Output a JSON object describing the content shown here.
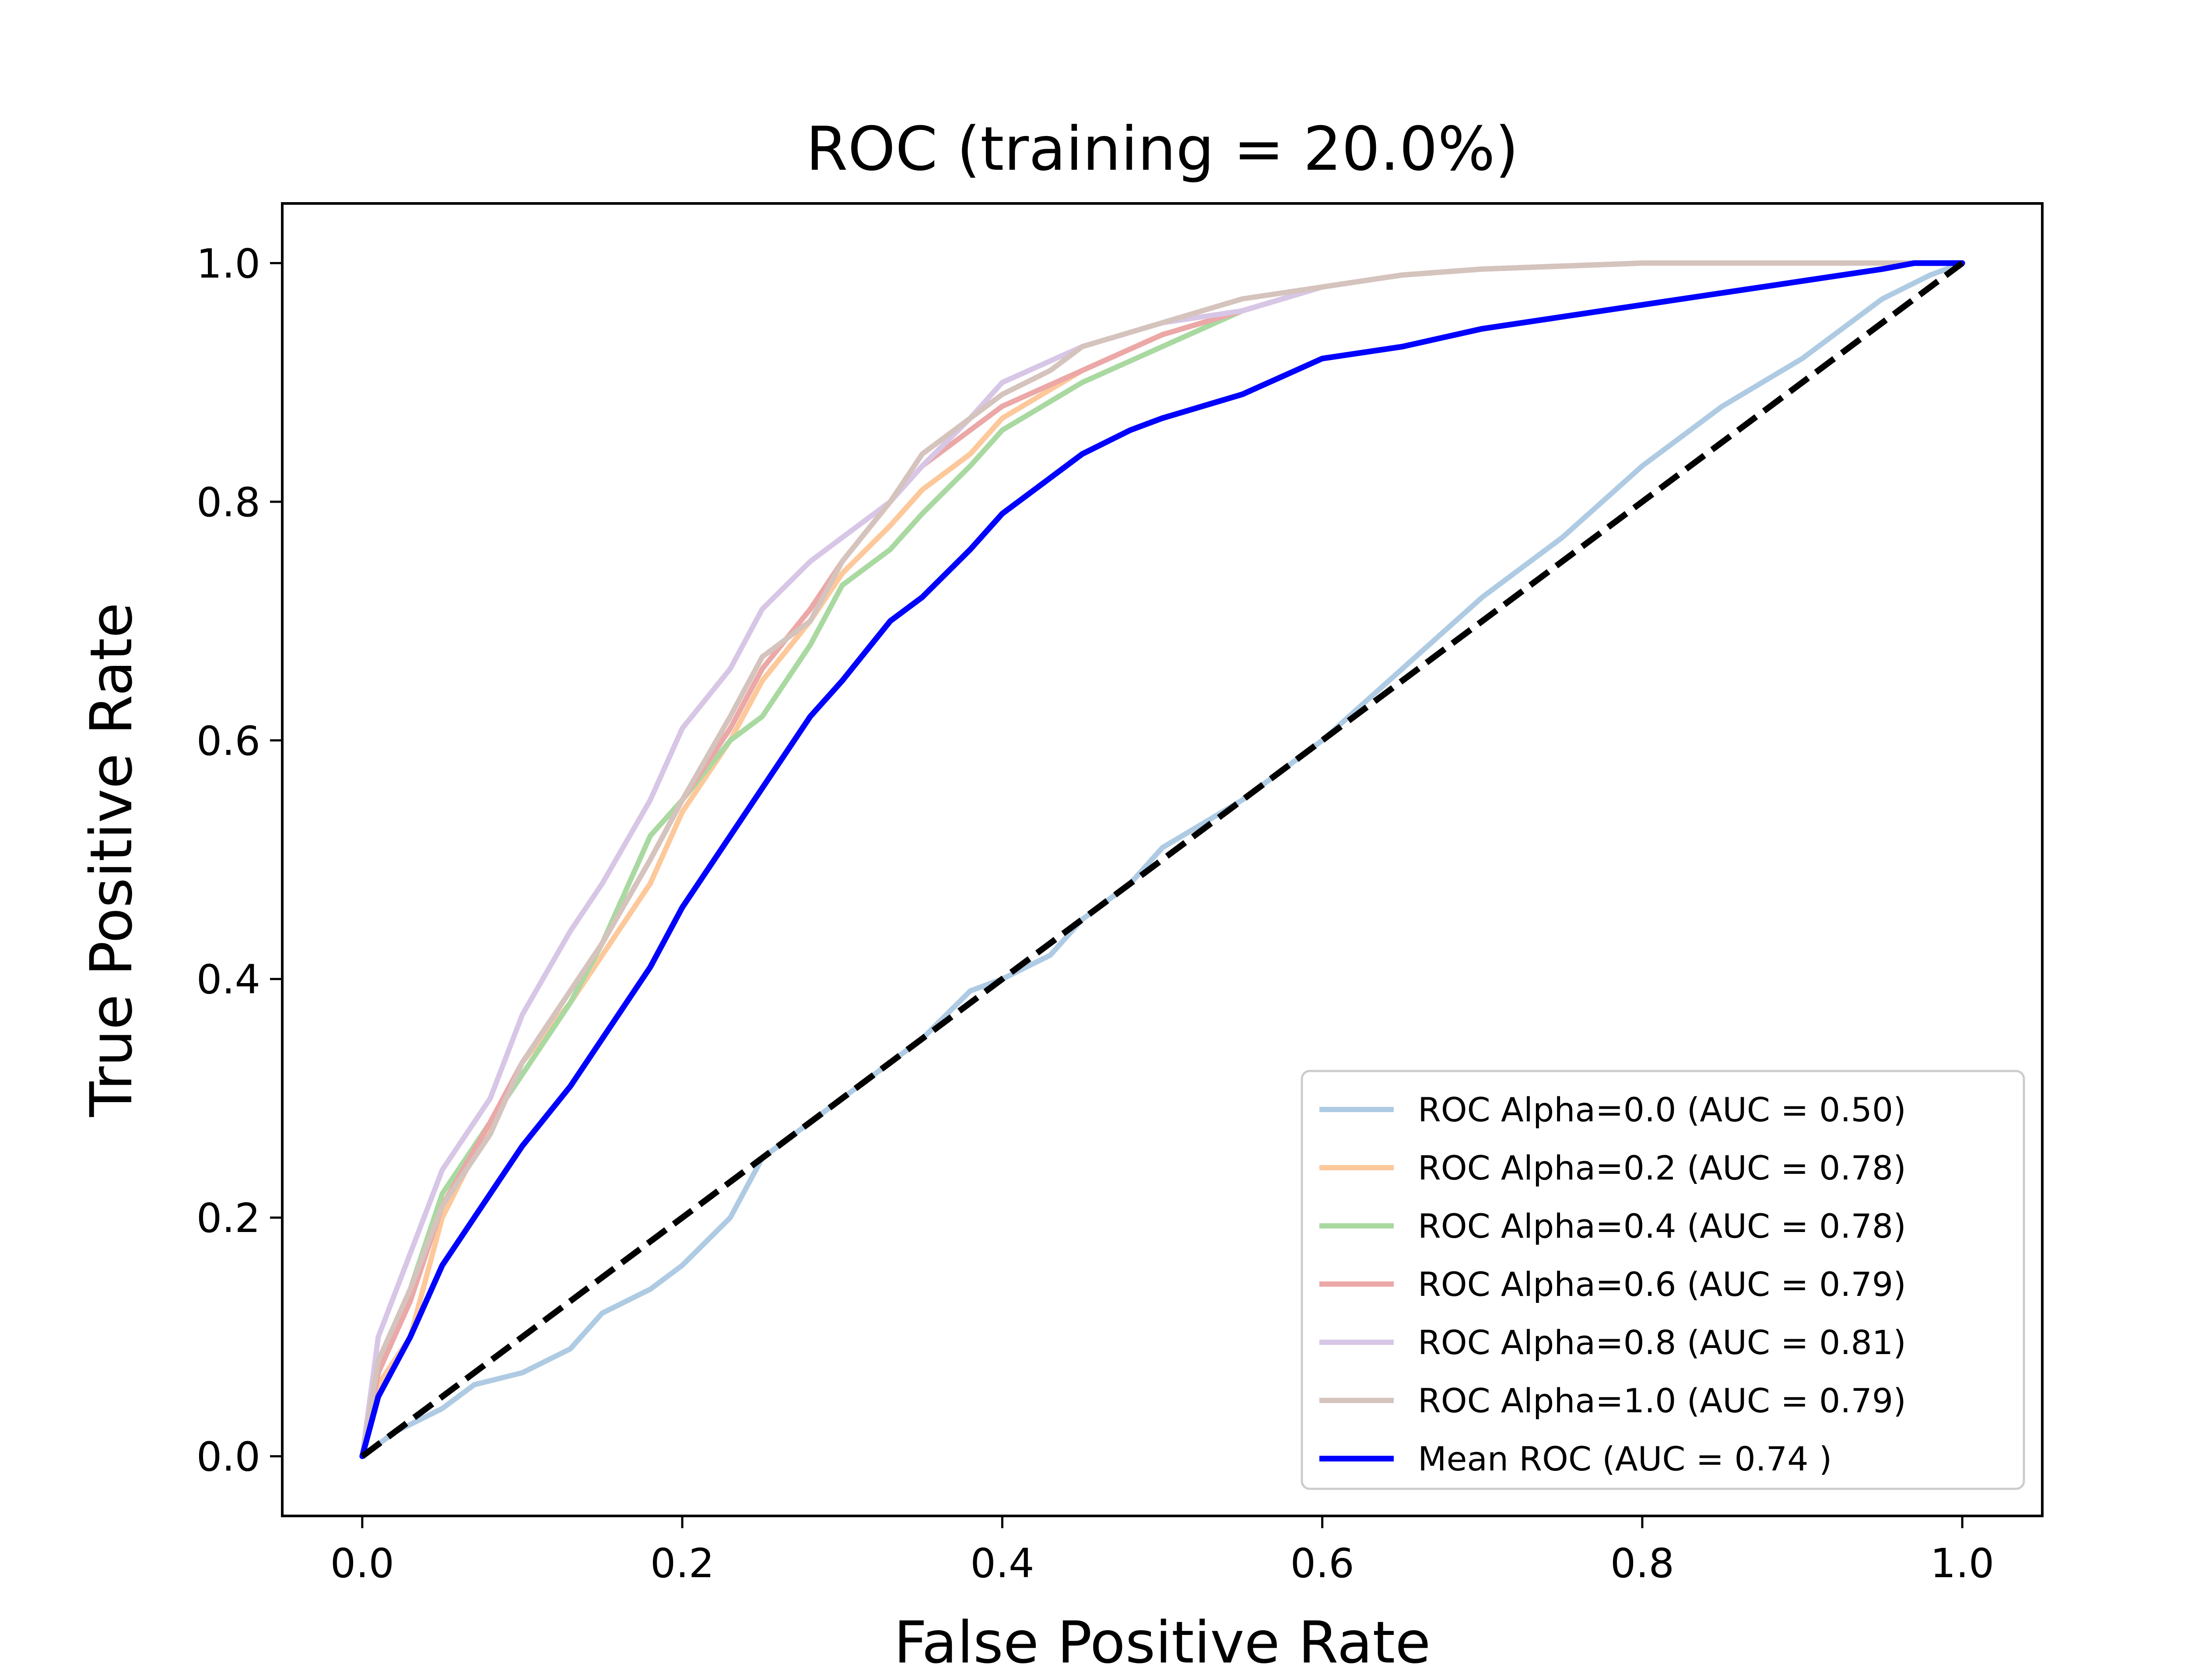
{
  "chart_data": {
    "type": "line",
    "title": "ROC (training = 20.0%)",
    "xlabel": "False Positive Rate",
    "ylabel": "True Positive Rate",
    "xlim": [
      -0.05,
      1.05
    ],
    "ylim": [
      -0.05,
      1.05
    ],
    "xticks": [
      "0.0",
      "0.2",
      "0.4",
      "0.6",
      "0.8",
      "1.0"
    ],
    "yticks": [
      "0.0",
      "0.2",
      "0.4",
      "0.6",
      "0.8",
      "1.0"
    ],
    "grid": false,
    "legend_position": "lower-right",
    "series": [
      {
        "name": "ROC Alpha=0.0 (AUC = 0.50)",
        "color": "#aecbe3",
        "x": [
          0,
          0.02,
          0.05,
          0.07,
          0.1,
          0.13,
          0.15,
          0.18,
          0.2,
          0.23,
          0.25,
          0.28,
          0.3,
          0.33,
          0.35,
          0.38,
          0.4,
          0.43,
          0.45,
          0.48,
          0.5,
          0.55,
          0.6,
          0.65,
          0.7,
          0.75,
          0.8,
          0.85,
          0.9,
          0.93,
          0.95,
          0.98,
          1.0
        ],
        "y": [
          0,
          0.02,
          0.04,
          0.06,
          0.07,
          0.09,
          0.12,
          0.14,
          0.16,
          0.2,
          0.25,
          0.28,
          0.3,
          0.33,
          0.35,
          0.39,
          0.4,
          0.42,
          0.45,
          0.48,
          0.51,
          0.55,
          0.6,
          0.66,
          0.72,
          0.77,
          0.83,
          0.88,
          0.92,
          0.95,
          0.97,
          0.99,
          1.0
        ]
      },
      {
        "name": "ROC Alpha=0.2 (AUC = 0.78)",
        "color": "#fdc89a",
        "x": [
          0,
          0.01,
          0.03,
          0.05,
          0.08,
          0.1,
          0.13,
          0.15,
          0.18,
          0.2,
          0.23,
          0.25,
          0.28,
          0.3,
          0.33,
          0.35,
          0.38,
          0.4,
          0.45,
          0.5,
          0.55,
          0.6,
          0.65,
          0.7,
          0.8,
          0.9,
          1.0
        ],
        "y": [
          0,
          0.06,
          0.1,
          0.2,
          0.28,
          0.33,
          0.38,
          0.42,
          0.48,
          0.54,
          0.6,
          0.65,
          0.7,
          0.74,
          0.78,
          0.81,
          0.84,
          0.87,
          0.91,
          0.94,
          0.96,
          0.98,
          0.99,
          0.995,
          1.0,
          1.0,
          1.0
        ]
      },
      {
        "name": "ROC Alpha=0.4 (AUC = 0.78)",
        "color": "#a9d9a1",
        "x": [
          0,
          0.01,
          0.03,
          0.05,
          0.08,
          0.1,
          0.13,
          0.15,
          0.18,
          0.2,
          0.23,
          0.25,
          0.28,
          0.3,
          0.33,
          0.35,
          0.38,
          0.4,
          0.45,
          0.5,
          0.55,
          0.6,
          0.65,
          0.7,
          0.8,
          0.9,
          1.0
        ],
        "y": [
          0,
          0.08,
          0.14,
          0.22,
          0.28,
          0.32,
          0.38,
          0.43,
          0.52,
          0.55,
          0.6,
          0.62,
          0.68,
          0.73,
          0.76,
          0.79,
          0.83,
          0.86,
          0.9,
          0.93,
          0.96,
          0.98,
          0.99,
          0.995,
          1.0,
          1.0,
          1.0
        ]
      },
      {
        "name": "ROC Alpha=0.6 (AUC = 0.79)",
        "color": "#eca7a7",
        "x": [
          0,
          0.01,
          0.03,
          0.05,
          0.08,
          0.1,
          0.13,
          0.15,
          0.18,
          0.2,
          0.23,
          0.25,
          0.28,
          0.3,
          0.33,
          0.35,
          0.38,
          0.4,
          0.45,
          0.5,
          0.55,
          0.6,
          0.65,
          0.7,
          0.8,
          0.9,
          1.0
        ],
        "y": [
          0,
          0.07,
          0.13,
          0.21,
          0.28,
          0.33,
          0.39,
          0.43,
          0.5,
          0.55,
          0.61,
          0.66,
          0.71,
          0.75,
          0.8,
          0.83,
          0.86,
          0.88,
          0.91,
          0.94,
          0.96,
          0.98,
          0.99,
          0.995,
          1.0,
          1.0,
          1.0
        ]
      },
      {
        "name": "ROC Alpha=0.8 (AUC = 0.81)",
        "color": "#d7c6e6",
        "x": [
          0,
          0.01,
          0.03,
          0.05,
          0.08,
          0.1,
          0.13,
          0.15,
          0.18,
          0.2,
          0.23,
          0.25,
          0.28,
          0.3,
          0.33,
          0.35,
          0.38,
          0.4,
          0.45,
          0.5,
          0.55,
          0.6,
          0.65,
          0.7,
          0.8,
          0.9,
          1.0
        ],
        "y": [
          0,
          0.1,
          0.17,
          0.24,
          0.3,
          0.37,
          0.44,
          0.48,
          0.55,
          0.61,
          0.66,
          0.71,
          0.75,
          0.77,
          0.8,
          0.83,
          0.87,
          0.9,
          0.93,
          0.95,
          0.96,
          0.98,
          0.99,
          0.995,
          1.0,
          1.0,
          1.0
        ]
      },
      {
        "name": "ROC Alpha=1.0 (AUC = 0.79)",
        "color": "#d5c3bd",
        "x": [
          0,
          0.01,
          0.03,
          0.05,
          0.08,
          0.1,
          0.13,
          0.15,
          0.18,
          0.2,
          0.23,
          0.25,
          0.28,
          0.3,
          0.33,
          0.35,
          0.38,
          0.4,
          0.43,
          0.45,
          0.5,
          0.55,
          0.6,
          0.65,
          0.7,
          0.8,
          0.9,
          1.0
        ],
        "y": [
          0,
          0.08,
          0.14,
          0.21,
          0.27,
          0.33,
          0.39,
          0.43,
          0.5,
          0.55,
          0.62,
          0.67,
          0.7,
          0.75,
          0.8,
          0.84,
          0.87,
          0.89,
          0.91,
          0.93,
          0.95,
          0.97,
          0.98,
          0.99,
          0.995,
          1.0,
          1.0,
          1.0
        ]
      },
      {
        "name": "Mean ROC (AUC = 0.74 )",
        "color": "#0000ff",
        "x": [
          0,
          0.01,
          0.03,
          0.05,
          0.08,
          0.1,
          0.13,
          0.15,
          0.18,
          0.2,
          0.23,
          0.25,
          0.28,
          0.3,
          0.33,
          0.35,
          0.38,
          0.4,
          0.43,
          0.45,
          0.48,
          0.5,
          0.55,
          0.6,
          0.65,
          0.7,
          0.75,
          0.8,
          0.85,
          0.9,
          0.95,
          0.97,
          1.0
        ],
        "y": [
          0,
          0.05,
          0.1,
          0.16,
          0.22,
          0.26,
          0.31,
          0.35,
          0.41,
          0.46,
          0.52,
          0.56,
          0.62,
          0.65,
          0.7,
          0.72,
          0.76,
          0.79,
          0.82,
          0.84,
          0.86,
          0.87,
          0.89,
          0.92,
          0.93,
          0.945,
          0.955,
          0.965,
          0.975,
          0.985,
          0.995,
          1.0,
          1.0
        ]
      }
    ],
    "reference_line": {
      "x": [
        0,
        1
      ],
      "y": [
        0,
        1
      ],
      "color": "#000000",
      "style": "dashed"
    }
  }
}
